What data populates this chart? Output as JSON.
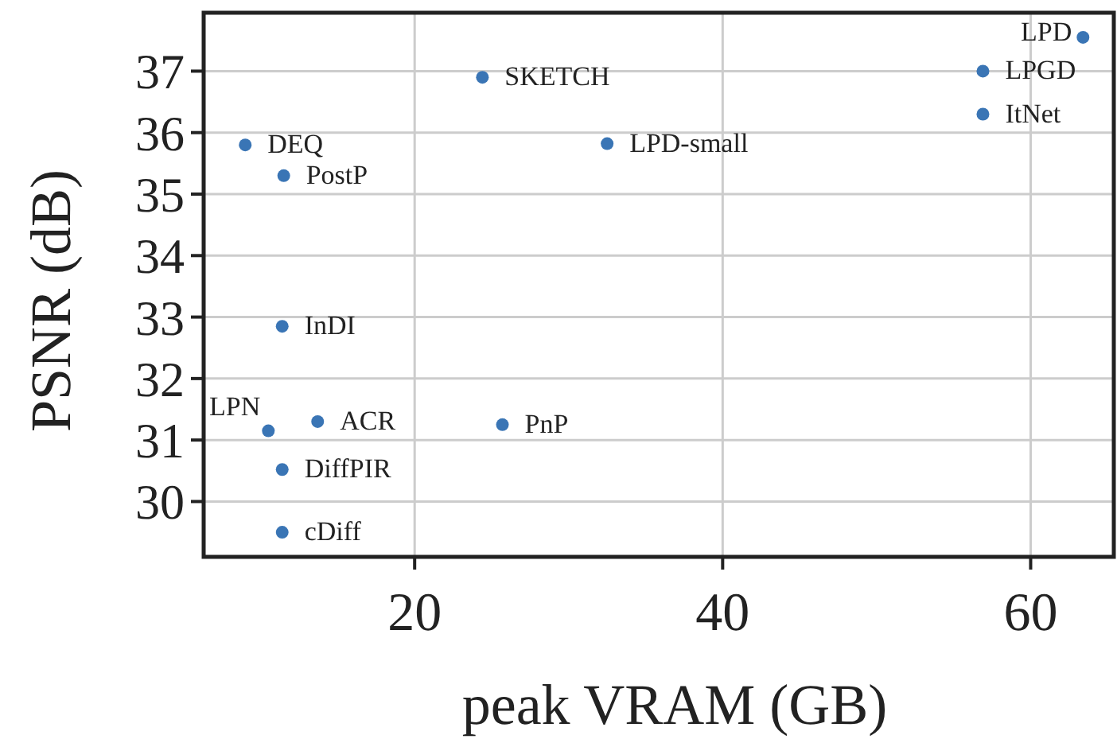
{
  "chart_data": {
    "type": "scatter",
    "xlabel": "peak VRAM (GB)",
    "ylabel": "PSNR (dB)",
    "xlim": [
      6.3,
      65.4
    ],
    "xticks": [
      20,
      40,
      60
    ],
    "ylim": [
      29.1,
      37.95
    ],
    "yticks": [
      30,
      31,
      32,
      33,
      34,
      35,
      36,
      37
    ],
    "grid": true,
    "marker": "circle",
    "series": [
      {
        "color": "#3a75b5",
        "x": [
          63.4,
          56.9,
          56.9,
          24.4,
          32.5,
          9.0,
          11.5,
          11.4,
          10.5,
          13.7,
          25.7,
          11.4,
          11.4
        ],
        "values": [
          37.55,
          37.0,
          36.3,
          36.9,
          35.82,
          35.8,
          35.3,
          32.85,
          31.15,
          31.3,
          31.25,
          30.52,
          29.5
        ]
      }
    ],
    "annotations": [
      {
        "text": "LPD",
        "x": 63.4,
        "y": 37.55
      },
      {
        "text": "LPGD",
        "x": 56.9,
        "y": 37.0
      },
      {
        "text": "ItNet",
        "x": 56.9,
        "y": 36.3
      },
      {
        "text": "SKETCH",
        "x": 24.4,
        "y": 36.9
      },
      {
        "text": "LPD-small",
        "x": 32.5,
        "y": 35.82
      },
      {
        "text": "DEQ",
        "x": 9.0,
        "y": 35.8
      },
      {
        "text": "PostP",
        "x": 11.5,
        "y": 35.3
      },
      {
        "text": "InDI",
        "x": 11.4,
        "y": 32.85
      },
      {
        "text": "LPN",
        "x": 10.5,
        "y": 31.15
      },
      {
        "text": "ACR",
        "x": 13.7,
        "y": 31.3
      },
      {
        "text": "PnP",
        "x": 25.7,
        "y": 31.25
      },
      {
        "text": "DiffPIR",
        "x": 11.4,
        "y": 30.52
      },
      {
        "text": "cDiff",
        "x": 11.4,
        "y": 29.5
      }
    ]
  }
}
